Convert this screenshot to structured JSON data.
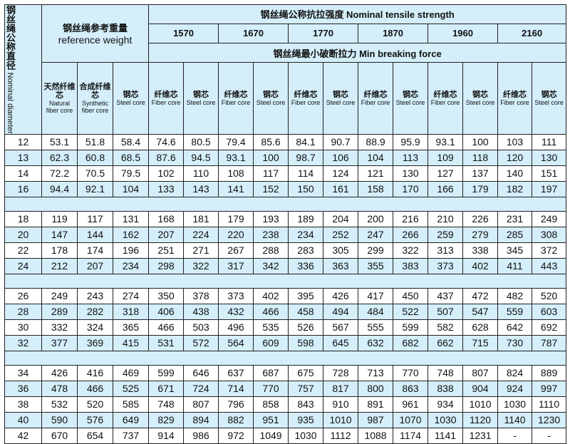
{
  "header": {
    "diameter_cn": "钢丝绳公称直径",
    "diameter_en": "Nominal diameter",
    "weight_cn": "钢丝绳参考重量",
    "weight_en": "reference weight",
    "strength_title": "钢丝绳公称抗拉强度 Nominal tensile strength",
    "grades": [
      "1570",
      "1670",
      "1770",
      "1870",
      "1960",
      "2160"
    ],
    "force_title": "钢丝绳最小破断拉力 Min breaking force",
    "weight_cols": [
      {
        "cn": "天然纤维芯",
        "en": "Natural fiber core"
      },
      {
        "cn": "合成纤维芯",
        "en": "Synthetic fiber core"
      },
      {
        "cn": "钢芯",
        "en": "Steel core"
      }
    ],
    "force_col_fiber": {
      "cn": "纤维芯",
      "en": "Fiber core"
    },
    "force_col_steel": {
      "cn": "钢芯",
      "en": "Steel core"
    }
  },
  "groups": [
    [
      [
        "12",
        "53.1",
        "51.8",
        "58.4",
        "74.6",
        "80.5",
        "79.4",
        "85.6",
        "84.1",
        "90.7",
        "88.9",
        "95.9",
        "93.1",
        "100",
        "103",
        "111"
      ],
      [
        "13",
        "62.3",
        "60.8",
        "68.5",
        "87.6",
        "94.5",
        "93.1",
        "100",
        "98.7",
        "106",
        "104",
        "113",
        "109",
        "118",
        "120",
        "130"
      ],
      [
        "14",
        "72.2",
        "70.5",
        "79.5",
        "102",
        "110",
        "108",
        "117",
        "114",
        "124",
        "121",
        "130",
        "127",
        "137",
        "140",
        "151"
      ],
      [
        "16",
        "94.4",
        "92.1",
        "104",
        "133",
        "143",
        "141",
        "152",
        "150",
        "161",
        "158",
        "170",
        "166",
        "179",
        "182",
        "197"
      ]
    ],
    [
      [
        "18",
        "119",
        "117",
        "131",
        "168",
        "181",
        "179",
        "193",
        "189",
        "204",
        "200",
        "216",
        "210",
        "226",
        "231",
        "249"
      ],
      [
        "20",
        "147",
        "144",
        "162",
        "207",
        "224",
        "220",
        "238",
        "234",
        "252",
        "247",
        "266",
        "259",
        "279",
        "285",
        "308"
      ],
      [
        "22",
        "178",
        "174",
        "196",
        "251",
        "271",
        "267",
        "288",
        "283",
        "305",
        "299",
        "322",
        "313",
        "338",
        "345",
        "372"
      ],
      [
        "24",
        "212",
        "207",
        "234",
        "298",
        "322",
        "317",
        "342",
        "336",
        "363",
        "355",
        "383",
        "373",
        "402",
        "411",
        "443"
      ]
    ],
    [
      [
        "26",
        "249",
        "243",
        "274",
        "350",
        "378",
        "373",
        "402",
        "395",
        "426",
        "417",
        "450",
        "437",
        "472",
        "482",
        "520"
      ],
      [
        "28",
        "289",
        "282",
        "318",
        "406",
        "438",
        "432",
        "466",
        "458",
        "494",
        "484",
        "522",
        "507",
        "547",
        "559",
        "603"
      ],
      [
        "30",
        "332",
        "324",
        "365",
        "466",
        "503",
        "496",
        "535",
        "526",
        "567",
        "555",
        "599",
        "582",
        "628",
        "642",
        "692"
      ],
      [
        "32",
        "377",
        "369",
        "415",
        "531",
        "572",
        "564",
        "609",
        "598",
        "645",
        "632",
        "682",
        "662",
        "715",
        "730",
        "787"
      ]
    ],
    [
      [
        "34",
        "426",
        "416",
        "469",
        "599",
        "646",
        "637",
        "687",
        "675",
        "728",
        "713",
        "770",
        "748",
        "807",
        "824",
        "889"
      ],
      [
        "36",
        "478",
        "466",
        "525",
        "671",
        "724",
        "714",
        "770",
        "757",
        "817",
        "800",
        "863",
        "838",
        "904",
        "924",
        "997"
      ],
      [
        "38",
        "532",
        "520",
        "585",
        "748",
        "807",
        "796",
        "858",
        "843",
        "910",
        "891",
        "961",
        "934",
        "1010",
        "1030",
        "1110"
      ],
      [
        "40",
        "590",
        "576",
        "649",
        "829",
        "894",
        "882",
        "951",
        "935",
        "1010",
        "987",
        "1070",
        "1030",
        "1120",
        "1140",
        "1230"
      ],
      [
        "42",
        "670",
        "654",
        "737",
        "914",
        "986",
        "972",
        "1049",
        "1030",
        "1112",
        "1088",
        "1174",
        "1141",
        "1231",
        "-",
        "-"
      ]
    ]
  ],
  "colors": {
    "header_bg": "#d4eefa",
    "alt_row_bg": "#d4eefa",
    "border": "#222222"
  }
}
